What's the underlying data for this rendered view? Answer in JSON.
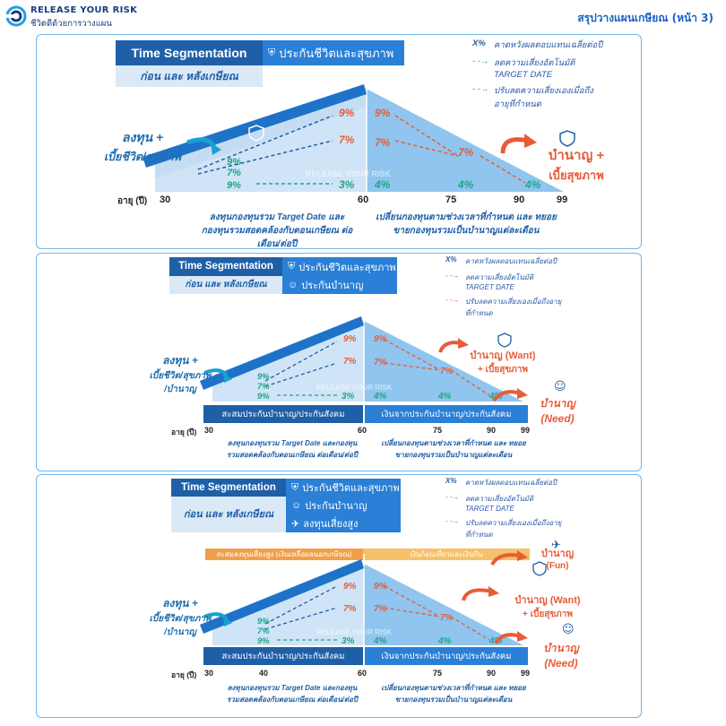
{
  "header": {
    "brand": "RELEASE YOUR RISK",
    "tagline": "ชีวิตดีด้วยการวางแผน",
    "title": "สรุปวางแผนเกษียณ (หน้า 3)"
  },
  "common": {
    "ts_title": "Time Segmentation",
    "ts_sub": "ก่อน และ หลังเกษียณ",
    "legend_key": "X%",
    "legend_1": "คาดหวังผลตอบแทนเฉลี่ยต่อปี",
    "legend_2": "ลดความเสี่ยงอัตโนมัติ TARGET DATE",
    "legend_3": "ปรับลดความเสี่ยงเองเมื่อถึงอายุที่กำหนด",
    "age_label": "อายุ (ปี)",
    "watermark": "RELEASE YOUR RISK",
    "cap_left": "ลงทุนกองทุนรวม Target Date และกองทุนรวมสอดคล้องกับตอนเกษียณ ต่อเดือน/ต่อปี",
    "cap_right": "เปลี่ยนกองทุนตามช่วงเวลาที่กำหนด และ ทยอยขายกองทุนรวมเป็นบำนาญแต่ละเดือน",
    "pct_9": "9%",
    "pct_7": "7%",
    "pct_3": "3%",
    "pct_4": "4%"
  },
  "panel1": {
    "product_1": "ประกันชีวิตและสุขภาพ",
    "left_top": "ลงทุน +",
    "left_bottom": "เบี้ยชีวิต/สุขภาพ",
    "right_top": "บำนาญ +",
    "right_bottom": "เบี้ยสุขภาพ",
    "ages": [
      "30",
      "60",
      "75",
      "90",
      "99"
    ]
  },
  "panel2": {
    "product_1": "ประกันชีวิตและสุขภาพ",
    "product_2": "ประกันบำนาญ",
    "left_top": "ลงทุน +",
    "left_mid": "เบี้ยชีวิต/สุขภาพ",
    "left_bottom": "/บำนาญ",
    "want_top": "บำนาญ (Want)",
    "want_bottom": "+ เบี้ยสุขภาพ",
    "need_top": "บำนาญ",
    "need_bottom": "(Need)",
    "bar_left": "สะสมประกันบำนาญ/ประกันสังคม",
    "bar_right": "เงินจากประกันบำนาญ/ประกันสังคม",
    "ages": [
      "30",
      "60",
      "75",
      "90",
      "99"
    ]
  },
  "panel3": {
    "product_1": "ประกันชีวิตและสุขภาพ",
    "product_2": "ประกันบำนาญ",
    "product_3": "ลงทุนเสี่ยงสูง",
    "obar_left": "สะสมลงทุนเสี่ยงสูง (เงินเหลือผลนอกเกษียณ)",
    "obar_right": "เงินก้อนเที่ยวและเงินกิน",
    "fun_top": "บำนาญ",
    "fun_bottom": "(Fun)",
    "left_top": "ลงทุน +",
    "left_mid": "เบี้ยชีวิต/สุขภาพ",
    "left_bottom": "/บำนาญ",
    "want_top": "บำนาญ (Want)",
    "want_bottom": "+ เบี้ยสุขภาพ",
    "need_top": "บำนาญ",
    "need_bottom": "(Need)",
    "bar_left": "สะสมประกันบำนาญ/ประกันสังคม",
    "bar_right": "เงินจากประกันบำนาญ/ประกันสังคม",
    "ages": [
      "30",
      "40",
      "60",
      "75",
      "90",
      "99"
    ]
  },
  "colors": {
    "navy": "#1f5fa8",
    "accent": "#2a7fd6",
    "green": "#1fa58a",
    "orange": "#e85c38",
    "sky": "#6fb6ea"
  }
}
